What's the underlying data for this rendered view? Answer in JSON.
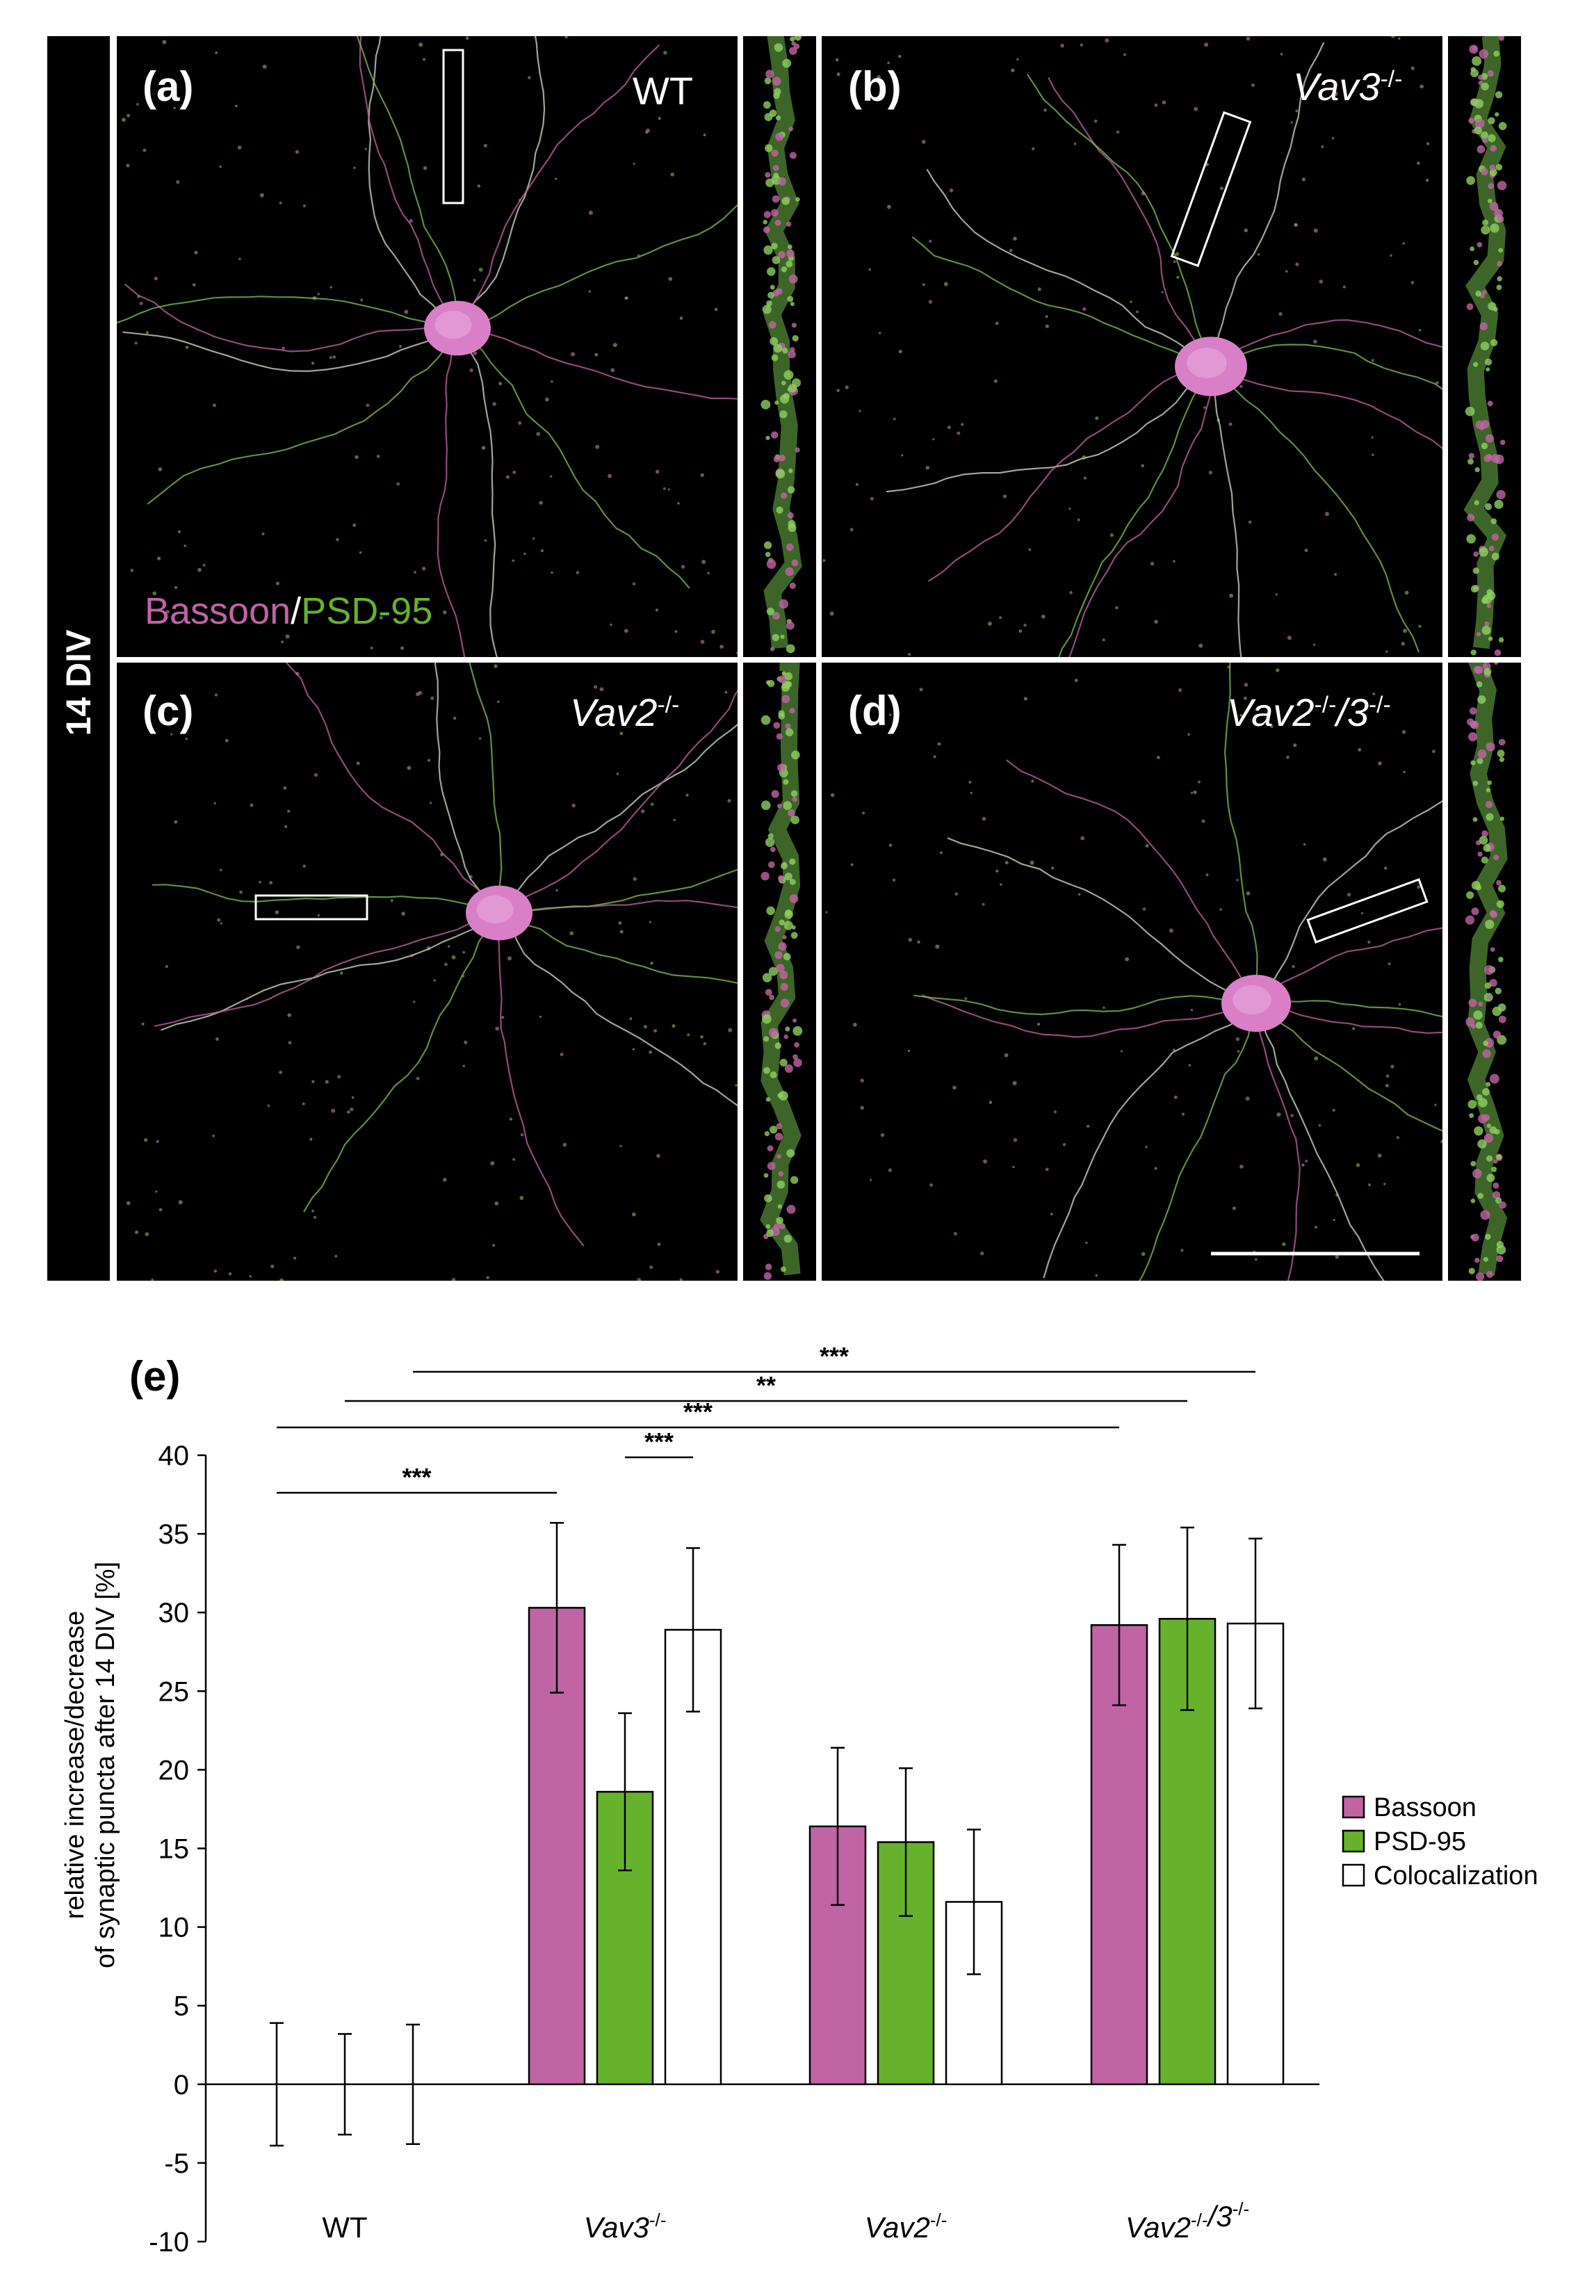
{
  "figure": {
    "side_label": "14 DIV",
    "panels": [
      {
        "id": "a",
        "label": "(a)",
        "genotype": "WT"
      },
      {
        "id": "b",
        "label": "(b)",
        "genotype": "Vav3-/-"
      },
      {
        "id": "c",
        "label": "(c)",
        "genotype": "Vav2-/-"
      },
      {
        "id": "d",
        "label": "(d)",
        "genotype": "Vav2-/-/3-/-"
      }
    ],
    "stain": {
      "bassoon": "Bassoon",
      "slash": "/",
      "psd95": "PSD-95"
    },
    "colors": {
      "bassoon": "#c064a4",
      "psd95": "#66b22c",
      "colocalization": "#ffffff",
      "bg": "#000000"
    }
  },
  "chart_panel_label": "(e)",
  "chart_data": {
    "type": "bar",
    "categories": [
      "WT",
      "Vav3-/-",
      "Vav2-/-",
      "Vav2-/-/3-/-"
    ],
    "series": [
      {
        "name": "Bassoon",
        "color": "#c064a4",
        "values": [
          0,
          30.3,
          16.4,
          29.2
        ],
        "errors": [
          3.9,
          5.4,
          5.0,
          5.1
        ]
      },
      {
        "name": "PSD-95",
        "color": "#66b22c",
        "values": [
          0,
          18.6,
          15.4,
          29.6
        ],
        "errors": [
          3.2,
          5.0,
          4.7,
          5.8
        ]
      },
      {
        "name": "Colocalization",
        "color": "#ffffff",
        "values": [
          0,
          28.9,
          11.6,
          29.3
        ],
        "errors": [
          3.8,
          5.2,
          4.6,
          5.4
        ]
      }
    ],
    "ylabel_line1": "relative increase/decrease",
    "ylabel_line2": "of synaptic puncta after 14 DIV [%]",
    "ylim": [
      -10,
      40
    ],
    "yticks": [
      -10,
      -5,
      0,
      5,
      10,
      15,
      20,
      25,
      30,
      35,
      40
    ],
    "legend_position": "right",
    "significance": [
      {
        "from": [
          0,
          0
        ],
        "to": [
          1,
          0
        ],
        "label": "***"
      },
      {
        "from": [
          1,
          1
        ],
        "to": [
          1,
          2
        ],
        "label": "***"
      },
      {
        "from": [
          0,
          0
        ],
        "to": [
          3,
          0
        ],
        "label": "***"
      },
      {
        "from": [
          0,
          1
        ],
        "to": [
          3,
          1
        ],
        "label": "**"
      },
      {
        "from": [
          0,
          2
        ],
        "to": [
          3,
          2
        ],
        "label": "***"
      }
    ]
  }
}
